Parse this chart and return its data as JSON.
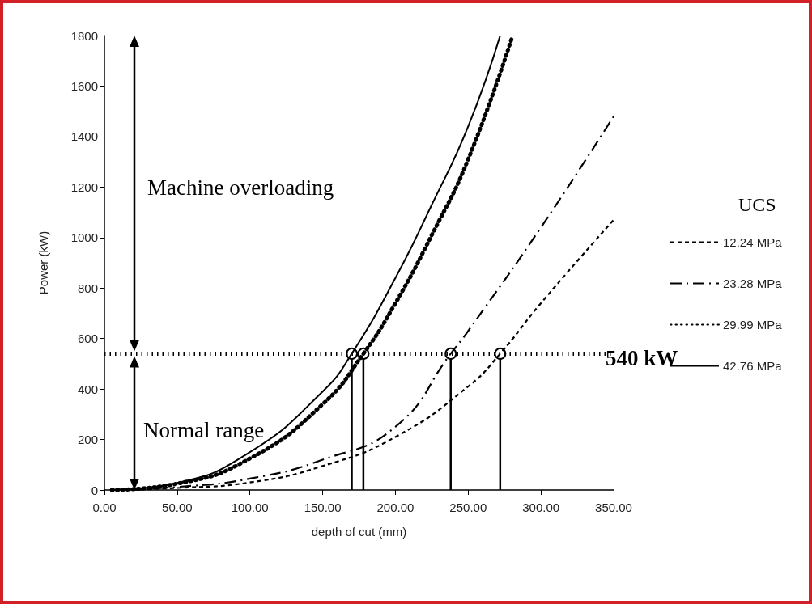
{
  "chart_data": {
    "type": "line",
    "xlabel": "depth of cut (mm)",
    "ylabel": "Power (kW)",
    "legend_title": "UCS",
    "xlim": [
      0,
      350
    ],
    "xticks": [
      {
        "value": 0,
        "label": "0.00"
      },
      {
        "value": 50,
        "label": "50.00"
      },
      {
        "value": 100,
        "label": "100.00"
      },
      {
        "value": 150,
        "label": "150.00"
      },
      {
        "value": 200,
        "label": "200.00"
      },
      {
        "value": 250,
        "label": "250.00"
      },
      {
        "value": 300,
        "label": "300.00"
      },
      {
        "value": 350,
        "label": "350.00"
      }
    ],
    "ylim": [
      0,
      1800
    ],
    "yticks": [
      0,
      200,
      400,
      600,
      800,
      1000,
      1200,
      1400,
      1600,
      1800
    ],
    "grid": false,
    "legend": "right",
    "marker": "none",
    "series": [
      {
        "name": "12.24 MPa",
        "color": "#000000",
        "line_style": "dashed",
        "x": [
          5,
          50,
          100,
          150,
          200,
          250,
          272,
          300,
          350
        ],
        "values": [
          0,
          8,
          30,
          95,
          210,
          410,
          540,
          740,
          1070
        ]
      },
      {
        "name": "23.28 MPa",
        "color": "#000000",
        "line_style": "dashdot",
        "x": [
          5,
          50,
          100,
          150,
          200,
          238,
          250,
          300,
          350
        ],
        "values": [
          0,
          12,
          45,
          120,
          250,
          540,
          630,
          1040,
          1480
        ]
      },
      {
        "name": "29.99 MPa",
        "color": "#000000",
        "line_style": "dotted",
        "x": [
          5,
          50,
          100,
          150,
          178,
          200,
          225,
          250,
          280
        ],
        "values": [
          0,
          25,
          125,
          340,
          540,
          740,
          1010,
          1310,
          1790
        ]
      },
      {
        "name": "42.76 MPa",
        "color": "#000000",
        "line_style": "solid",
        "x": [
          5,
          50,
          100,
          150,
          170,
          200,
          225,
          250,
          272
        ],
        "values": [
          0,
          28,
          150,
          390,
          540,
          840,
          1130,
          1440,
          1800
        ]
      },
      {
        "type": "lollipop",
        "color": "#000000",
        "marker": "circle",
        "x": [
          170,
          178,
          238,
          272
        ],
        "values": [
          540,
          540,
          540,
          540
        ]
      }
    ],
    "ref_lines": [
      {
        "axis": "y",
        "value": 540,
        "label": "540 kW",
        "color": "#000000",
        "line_style": "dotted"
      }
    ],
    "annotations": [
      "Machine overloading",
      "Normal range"
    ]
  }
}
